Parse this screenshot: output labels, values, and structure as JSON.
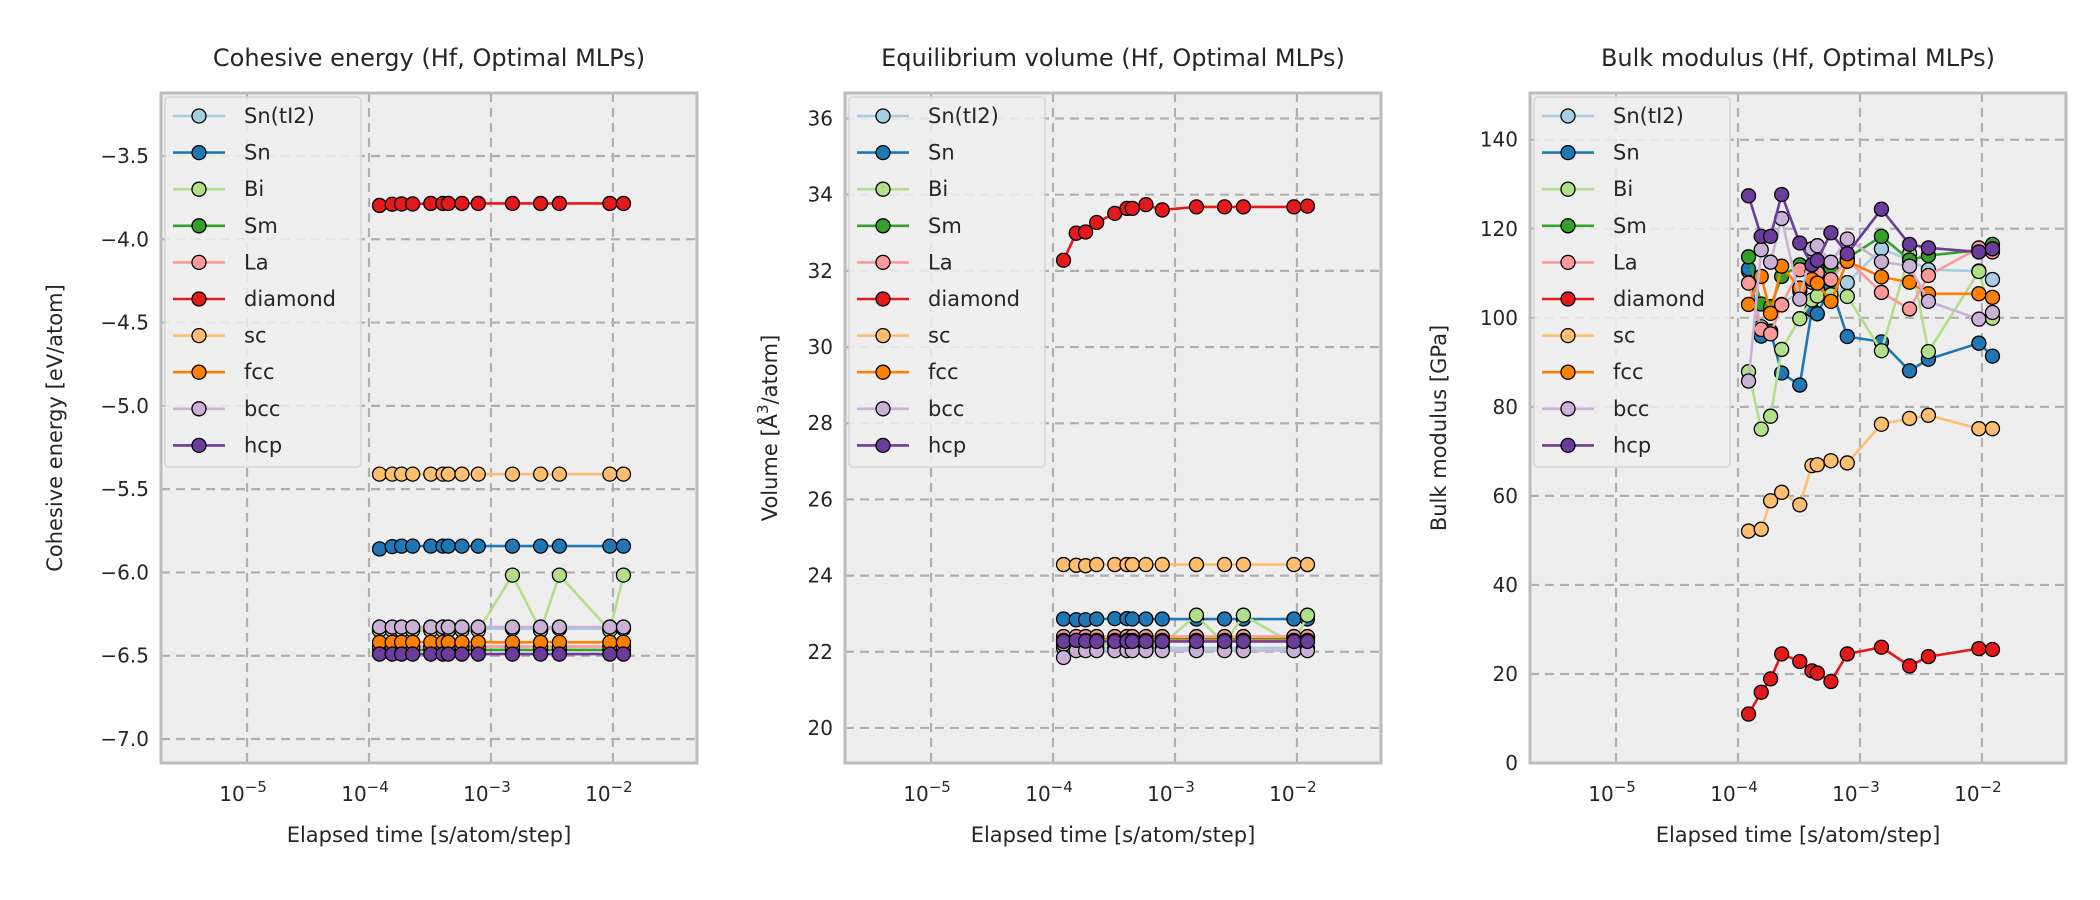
{
  "chart_data": [
    {
      "type": "line",
      "title": "Cohesive energy (Hf, Optimal MLPs)",
      "xlabel": "Elapsed time [s/atom/step]",
      "ylabel": "Cohesive energy [eV/atom]",
      "xscale": "log",
      "xlim": [
        1.97e-06,
        0.0489
      ],
      "ylim": [
        -7.144,
        -3.122
      ],
      "xticks": [
        {
          "v": 1e-05,
          "base": "10",
          "exp": "−5"
        },
        {
          "v": 0.0001,
          "base": "10",
          "exp": "−4"
        },
        {
          "v": 0.001,
          "base": "10",
          "exp": "−3"
        },
        {
          "v": 0.01,
          "base": "10",
          "exp": "−2"
        }
      ],
      "yticks": [
        {
          "v": -3.5,
          "label": "−3.5"
        },
        {
          "v": -4.0,
          "label": "−4.0"
        },
        {
          "v": -4.5,
          "label": "−4.5"
        },
        {
          "v": -5.0,
          "label": "−5.0"
        },
        {
          "v": -5.5,
          "label": "−5.5"
        },
        {
          "v": -6.0,
          "label": "−6.0"
        },
        {
          "v": -6.5,
          "label": "−6.5"
        },
        {
          "v": -7.0,
          "label": "−7.0"
        }
      ],
      "grid": true,
      "legend": "upper left",
      "x": [
        0.000122,
        0.000155,
        0.000185,
        0.000228,
        0.000321,
        0.000404,
        0.000447,
        0.000578,
        0.000787,
        0.0015,
        0.00255,
        0.00364,
        0.00944,
        0.0122
      ],
      "series": [
        {
          "name": "Sn(tI2)",
          "color": "#a6cee3",
          "values": [
            -6.338,
            -6.338,
            -6.338,
            -6.338,
            -6.338,
            -6.338,
            -6.338,
            -6.338,
            -6.338,
            -6.338,
            -6.338,
            -6.338,
            -6.338,
            -6.338
          ]
        },
        {
          "name": "Sn",
          "color": "#1f78b4",
          "values": [
            -5.859,
            -5.845,
            -5.842,
            -5.842,
            -5.842,
            -5.842,
            -5.842,
            -5.842,
            -5.842,
            -5.842,
            -5.842,
            -5.842,
            -5.842,
            -5.842
          ]
        },
        {
          "name": "Bi",
          "color": "#b2df8a",
          "values": [
            -6.348,
            -6.348,
            -6.348,
            -6.348,
            -6.348,
            -6.348,
            -6.348,
            -6.348,
            -6.348,
            -6.016,
            -6.348,
            -6.016,
            -6.348,
            -6.016
          ]
        },
        {
          "name": "Sm",
          "color": "#33a02c",
          "values": [
            -6.465,
            -6.465,
            -6.465,
            -6.465,
            -6.465,
            -6.465,
            -6.465,
            -6.465,
            -6.465,
            -6.465,
            -6.465,
            -6.465,
            -6.465,
            -6.465
          ]
        },
        {
          "name": "La",
          "color": "#fb9a99",
          "values": [
            -6.445,
            -6.445,
            -6.445,
            -6.445,
            -6.445,
            -6.445,
            -6.445,
            -6.445,
            -6.445,
            -6.445,
            -6.445,
            -6.445,
            -6.445,
            -6.445
          ]
        },
        {
          "name": "diamond",
          "color": "#e31a1c",
          "values": [
            -3.797,
            -3.79,
            -3.788,
            -3.788,
            -3.785,
            -3.785,
            -3.785,
            -3.785,
            -3.785,
            -3.785,
            -3.785,
            -3.785,
            -3.785,
            -3.785
          ]
        },
        {
          "name": "sc",
          "color": "#fdbf6f",
          "values": [
            -5.41,
            -5.41,
            -5.41,
            -5.41,
            -5.41,
            -5.41,
            -5.41,
            -5.41,
            -5.41,
            -5.41,
            -5.41,
            -5.41,
            -5.41,
            -5.41
          ]
        },
        {
          "name": "fcc",
          "color": "#ff7f00",
          "values": [
            -6.419,
            -6.419,
            -6.419,
            -6.419,
            -6.419,
            -6.419,
            -6.419,
            -6.419,
            -6.419,
            -6.419,
            -6.419,
            -6.419,
            -6.419,
            -6.419
          ]
        },
        {
          "name": "bcc",
          "color": "#cab2d6",
          "values": [
            -6.328,
            -6.328,
            -6.328,
            -6.328,
            -6.328,
            -6.328,
            -6.328,
            -6.328,
            -6.328,
            -6.328,
            -6.328,
            -6.328,
            -6.328,
            -6.328
          ]
        },
        {
          "name": "hcp",
          "color": "#6a3d9a",
          "values": [
            -6.49,
            -6.49,
            -6.49,
            -6.49,
            -6.49,
            -6.49,
            -6.49,
            -6.49,
            -6.49,
            -6.49,
            -6.49,
            -6.49,
            -6.49,
            -6.49
          ]
        }
      ]
    },
    {
      "type": "line",
      "title": "Equilibrium volume (Hf, Optimal MLPs)",
      "xlabel": "Elapsed time [s/atom/step]",
      "ylabel": "Volume [Å³/atom]",
      "ylabel_parts": {
        "pre": "Volume [",
        "unit": "Å",
        "sup": "3",
        "post": "/atom]"
      },
      "xscale": "log",
      "xlim": [
        1.97e-06,
        0.0489
      ],
      "ylim": [
        19.08,
        36.67
      ],
      "xticks": [
        {
          "v": 1e-05,
          "base": "10",
          "exp": "−5"
        },
        {
          "v": 0.0001,
          "base": "10",
          "exp": "−4"
        },
        {
          "v": 0.001,
          "base": "10",
          "exp": "−3"
        },
        {
          "v": 0.01,
          "base": "10",
          "exp": "−2"
        }
      ],
      "yticks": [
        {
          "v": 20,
          "label": "20"
        },
        {
          "v": 22,
          "label": "22"
        },
        {
          "v": 24,
          "label": "24"
        },
        {
          "v": 26,
          "label": "26"
        },
        {
          "v": 28,
          "label": "28"
        },
        {
          "v": 30,
          "label": "30"
        },
        {
          "v": 32,
          "label": "32"
        },
        {
          "v": 34,
          "label": "34"
        },
        {
          "v": 36,
          "label": "36"
        }
      ],
      "grid": true,
      "legend": "upper left",
      "x": [
        0.000122,
        0.000155,
        0.000185,
        0.000228,
        0.000321,
        0.000404,
        0.000447,
        0.000578,
        0.000787,
        0.0015,
        0.00255,
        0.00364,
        0.00944,
        0.0122
      ],
      "series": [
        {
          "name": "Sn(tI2)",
          "color": "#a6cee3",
          "values": [
            22.1,
            22.1,
            22.1,
            22.1,
            22.1,
            22.1,
            22.1,
            22.1,
            22.1,
            22.1,
            22.1,
            22.1,
            22.1,
            22.1
          ]
        },
        {
          "name": "Sn",
          "color": "#1f78b4",
          "values": [
            22.86,
            22.84,
            22.84,
            22.86,
            22.87,
            22.87,
            22.86,
            22.86,
            22.86,
            22.86,
            22.86,
            22.86,
            22.86,
            22.86
          ]
        },
        {
          "name": "Bi",
          "color": "#b2df8a",
          "values": [
            22.2,
            22.2,
            22.2,
            22.2,
            22.2,
            22.2,
            22.2,
            22.2,
            22.2,
            22.96,
            22.2,
            22.96,
            22.2,
            22.96
          ]
        },
        {
          "name": "Sm",
          "color": "#33a02c",
          "values": [
            22.33,
            22.33,
            22.33,
            22.33,
            22.33,
            22.33,
            22.33,
            22.33,
            22.33,
            22.33,
            22.33,
            22.33,
            22.33,
            22.33
          ]
        },
        {
          "name": "La",
          "color": "#fb9a99",
          "values": [
            22.4,
            22.4,
            22.4,
            22.4,
            22.4,
            22.4,
            22.4,
            22.4,
            22.4,
            22.4,
            22.4,
            22.4,
            22.4,
            22.4
          ]
        },
        {
          "name": "diamond",
          "color": "#e31a1c",
          "values": [
            32.28,
            32.99,
            33.02,
            33.27,
            33.51,
            33.64,
            33.64,
            33.74,
            33.6,
            33.68,
            33.68,
            33.68,
            33.68,
            33.7
          ]
        },
        {
          "name": "sc",
          "color": "#fdbf6f",
          "values": [
            24.29,
            24.27,
            24.26,
            24.29,
            24.29,
            24.29,
            24.29,
            24.29,
            24.29,
            24.29,
            24.29,
            24.29,
            24.29,
            24.29
          ]
        },
        {
          "name": "fcc",
          "color": "#ff7f00",
          "values": [
            22.3,
            22.3,
            22.3,
            22.3,
            22.3,
            22.3,
            22.3,
            22.3,
            22.3,
            22.3,
            22.3,
            22.3,
            22.3,
            22.3
          ]
        },
        {
          "name": "bcc",
          "color": "#cab2d6",
          "values": [
            21.85,
            22.03,
            22.03,
            22.03,
            22.03,
            22.03,
            22.03,
            22.03,
            22.03,
            22.03,
            22.03,
            22.03,
            22.03,
            22.03
          ]
        },
        {
          "name": "hcp",
          "color": "#6a3d9a",
          "values": [
            22.27,
            22.3,
            22.28,
            22.27,
            22.27,
            22.27,
            22.27,
            22.27,
            22.27,
            22.27,
            22.27,
            22.27,
            22.27,
            22.27
          ]
        }
      ]
    },
    {
      "type": "line",
      "title": "Bulk modulus (Hf, Optimal MLPs)",
      "xlabel": "Elapsed time [s/atom/step]",
      "ylabel": "Bulk modulus [GPa]",
      "xscale": "log",
      "xlim": [
        1.97e-06,
        0.0489
      ],
      "ylim": [
        0,
        150.5
      ],
      "xticks": [
        {
          "v": 1e-05,
          "base": "10",
          "exp": "−5"
        },
        {
          "v": 0.0001,
          "base": "10",
          "exp": "−4"
        },
        {
          "v": 0.001,
          "base": "10",
          "exp": "−3"
        },
        {
          "v": 0.01,
          "base": "10",
          "exp": "−2"
        }
      ],
      "yticks": [
        {
          "v": 0,
          "label": "0"
        },
        {
          "v": 20,
          "label": "20"
        },
        {
          "v": 40,
          "label": "40"
        },
        {
          "v": 60,
          "label": "60"
        },
        {
          "v": 80,
          "label": "80"
        },
        {
          "v": 100,
          "label": "100"
        },
        {
          "v": 120,
          "label": "120"
        },
        {
          "v": 140,
          "label": "140"
        }
      ],
      "grid": true,
      "legend": "upper left",
      "x": [
        0.000122,
        0.000155,
        0.000185,
        0.000228,
        0.000321,
        0.000404,
        0.000447,
        0.000578,
        0.000787,
        0.0015,
        0.00255,
        0.00364,
        0.00944,
        0.0122
      ],
      "series": [
        {
          "name": "Sn(tI2)",
          "color": "#a6cee3",
          "values": [
            110.5,
            98.0,
            97.0,
            103.0,
            106.0,
            108.0,
            108.5,
            104.0,
            107.9,
            115.5,
            113.0,
            110.8,
            110.5,
            108.6
          ]
        },
        {
          "name": "Sn",
          "color": "#1f78b4",
          "values": [
            111.0,
            95.9,
            96.9,
            87.6,
            84.9,
            101.8,
            100.9,
            107.0,
            95.8,
            94.6,
            88.1,
            90.7,
            94.3,
            91.4
          ]
        },
        {
          "name": "Bi",
          "color": "#b2df8a",
          "values": [
            87.9,
            75.0,
            77.9,
            92.9,
            99.8,
            104.0,
            104.9,
            105.2,
            104.8,
            92.6,
            114.4,
            92.4,
            110.4,
            99.9
          ]
        },
        {
          "name": "Sm",
          "color": "#33a02c",
          "values": [
            113.7,
            103.1,
            102.5,
            109.3,
            111.9,
            111.5,
            111.0,
            111.2,
            113.4,
            118.3,
            113.0,
            114.0,
            115.2,
            116.5
          ]
        },
        {
          "name": "La",
          "color": "#fb9a99",
          "values": [
            107.8,
            97.4,
            96.4,
            102.9,
            110.8,
            110.4,
            110.1,
            108.6,
            113.1,
            105.7,
            102.0,
            109.5,
            115.7,
            114.8
          ]
        },
        {
          "name": "diamond",
          "color": "#e31a1c",
          "values": [
            11.0,
            15.9,
            18.9,
            24.5,
            22.8,
            20.7,
            20.2,
            18.3,
            24.5,
            26.0,
            21.8,
            23.9,
            25.7,
            25.5
          ]
        },
        {
          "name": "sc",
          "color": "#fdbf6f",
          "values": [
            52.1,
            52.5,
            58.9,
            60.8,
            58.0,
            66.8,
            67.0,
            67.9,
            67.4,
            76.1,
            77.4,
            78.1,
            75.1,
            75.1
          ]
        },
        {
          "name": "fcc",
          "color": "#ff7f00",
          "values": [
            103.0,
            109.3,
            101.0,
            111.6,
            106.7,
            108.6,
            107.8,
            103.7,
            112.7,
            109.2,
            108.0,
            105.4,
            105.4,
            104.6
          ]
        },
        {
          "name": "bcc",
          "color": "#cab2d6",
          "values": [
            85.8,
            115.3,
            112.5,
            122.3,
            104.2,
            115.5,
            116.2,
            112.5,
            117.7,
            112.6,
            111.6,
            103.7,
            99.7,
            101.2
          ]
        },
        {
          "name": "hcp",
          "color": "#6a3d9a",
          "values": [
            127.4,
            118.3,
            118.3,
            127.7,
            116.8,
            111.9,
            112.9,
            119.1,
            114.4,
            124.4,
            116.5,
            115.7,
            114.8,
            115.5
          ]
        }
      ]
    }
  ]
}
